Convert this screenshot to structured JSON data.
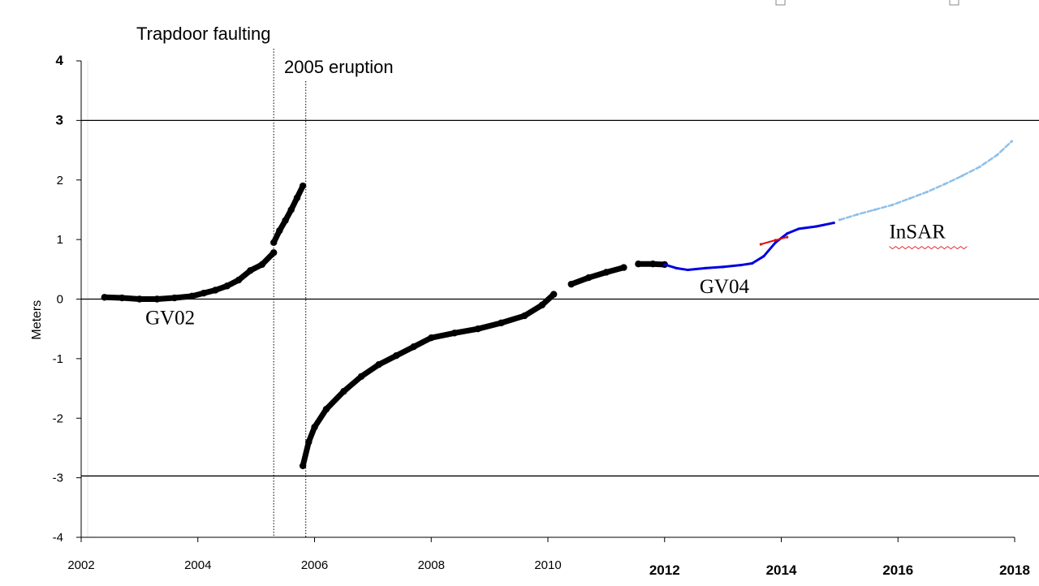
{
  "chart_data": {
    "type": "scatter",
    "ylabel": "Meters",
    "xlim": [
      2002,
      2018
    ],
    "ylim": [
      -4,
      4
    ],
    "x_ticks": [
      {
        "value": 2002,
        "label": "2002",
        "bold": false
      },
      {
        "value": 2004,
        "label": "2004",
        "bold": false
      },
      {
        "value": 2006,
        "label": "2006",
        "bold": false
      },
      {
        "value": 2008,
        "label": "2008",
        "bold": false
      },
      {
        "value": 2010,
        "label": "2010",
        "bold": false
      },
      {
        "value": 2012,
        "label": "2012",
        "bold": true
      },
      {
        "value": 2014,
        "label": "2014",
        "bold": true
      },
      {
        "value": 2016,
        "label": "2016",
        "bold": true
      },
      {
        "value": 2018,
        "label": "2018",
        "bold": true
      }
    ],
    "y_ticks": [
      {
        "value": 4,
        "label": "4",
        "bold": true
      },
      {
        "value": 3,
        "label": "3",
        "bold": true
      },
      {
        "value": 2,
        "label": "2",
        "bold": false
      },
      {
        "value": 1,
        "label": "1",
        "bold": false
      },
      {
        "value": 0,
        "label": "0",
        "bold": false
      },
      {
        "value": -1,
        "label": "-1",
        "bold": false
      },
      {
        "value": -2,
        "label": "-2",
        "bold": false
      },
      {
        "value": -3,
        "label": "-3",
        "bold": false
      },
      {
        "value": -4,
        "label": "-4",
        "bold": false
      }
    ],
    "horizontal_lines": [
      3,
      0,
      -2.97
    ],
    "event_lines": [
      {
        "x": 2005.3,
        "label": "Trapdoor  faulting"
      },
      {
        "x": 2005.85,
        "label": "2005 eruption"
      }
    ],
    "series": [
      {
        "name": "GV02",
        "color": "#000000",
        "x": [
          2002.4,
          2002.7,
          2003.0,
          2003.3,
          2003.6,
          2003.9,
          2004.1,
          2004.3,
          2004.5,
          2004.7,
          2004.9,
          2005.1,
          2005.3
        ],
        "y": [
          0.03,
          0.02,
          0.0,
          0.0,
          0.02,
          0.05,
          0.1,
          0.15,
          0.22,
          0.32,
          0.48,
          0.58,
          0.78
        ]
      },
      {
        "name": "GV02",
        "color": "#000000",
        "x": [
          2005.3,
          2005.4,
          2005.5,
          2005.6,
          2005.7,
          2005.8
        ],
        "y": [
          0.95,
          1.15,
          1.32,
          1.5,
          1.7,
          1.9
        ]
      },
      {
        "name": "GV02",
        "color": "#000000",
        "x": [
          2005.8,
          2005.9,
          2006.0,
          2006.2,
          2006.5,
          2006.8,
          2007.1,
          2007.4,
          2007.7,
          2008.0,
          2008.4,
          2008.8,
          2009.2,
          2009.6,
          2009.9,
          2010.1
        ],
        "y": [
          -2.8,
          -2.4,
          -2.15,
          -1.85,
          -1.55,
          -1.3,
          -1.1,
          -0.95,
          -0.8,
          -0.65,
          -0.57,
          -0.5,
          -0.4,
          -0.28,
          -0.1,
          0.08
        ]
      },
      {
        "name": "GV02",
        "color": "#000000",
        "x": [
          2010.4,
          2010.7,
          2011.0,
          2011.3
        ],
        "y": [
          0.25,
          0.36,
          0.45,
          0.53
        ]
      },
      {
        "name": "GV02",
        "color": "#000000",
        "x": [
          2011.55,
          2011.8,
          2012.0
        ],
        "y": [
          0.59,
          0.59,
          0.58
        ]
      },
      {
        "name": "GV04",
        "color": "#0000e0",
        "x": [
          2012.0,
          2012.2,
          2012.4,
          2012.7,
          2013.0,
          2013.3,
          2013.5,
          2013.7,
          2013.9,
          2014.1,
          2014.3,
          2014.6,
          2014.9
        ],
        "y": [
          0.58,
          0.52,
          0.49,
          0.52,
          0.54,
          0.57,
          0.6,
          0.72,
          0.95,
          1.1,
          1.18,
          1.22,
          1.28
        ]
      },
      {
        "name": "",
        "color": "#dd1111",
        "x": [
          2013.65,
          2013.9,
          2014.1
        ],
        "y": [
          0.92,
          0.99,
          1.04
        ]
      },
      {
        "name": "InSAR",
        "color": "#8ec0ea",
        "x": [
          2015.0,
          2015.3,
          2015.6,
          2015.9,
          2016.2,
          2016.5,
          2016.8,
          2017.1,
          2017.4,
          2017.7,
          2017.95
        ],
        "y": [
          1.33,
          1.42,
          1.5,
          1.58,
          1.69,
          1.8,
          1.93,
          2.07,
          2.22,
          2.42,
          2.65
        ]
      }
    ],
    "labels": [
      {
        "text": "GV02",
        "x": 2003.1,
        "y": -0.42
      },
      {
        "text": "GV04",
        "x": 2012.6,
        "y": 0.1
      },
      {
        "text": "InSAR",
        "x": 2015.85,
        "y": 1.02
      }
    ]
  }
}
